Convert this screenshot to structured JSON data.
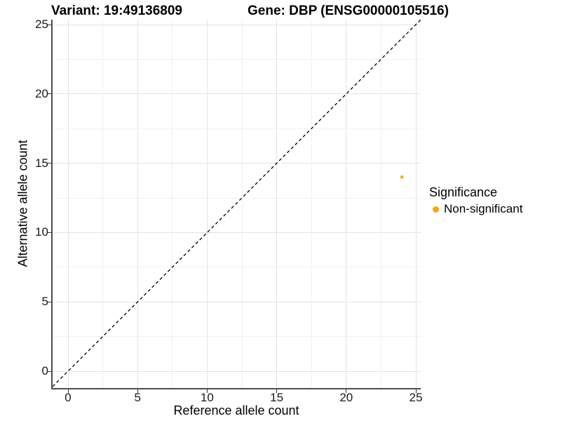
{
  "header": {
    "variant_title": "Variant: 19:49136809",
    "gene_title": "Gene: DBP (ENSG00000105516)"
  },
  "chart_data": {
    "type": "scatter",
    "title": "Variant: 19:49136809    Gene: DBP (ENSG00000105516)",
    "xlabel": "Reference allele count",
    "ylabel": "Alternative allele count",
    "xlim": [
      0,
      25
    ],
    "ylim": [
      0,
      25
    ],
    "x_ticks": [
      0,
      5,
      10,
      15,
      20,
      25
    ],
    "y_ticks": [
      0,
      5,
      10,
      15,
      20,
      25
    ],
    "grid": "major and minor, light gray on white",
    "series": [
      {
        "name": "Non-significant",
        "color": "#FFA500",
        "points": [
          {
            "x": 24,
            "y": 14
          }
        ]
      }
    ],
    "reference_line": {
      "type": "abline",
      "slope": 1,
      "intercept": 0,
      "style": "dashed",
      "color": "#000000"
    },
    "legend": {
      "title": "Significance",
      "position": "right",
      "entries": [
        {
          "label": "Non-significant",
          "color": "#FFA500"
        }
      ]
    }
  },
  "colors": {
    "background": "#FFFFFF",
    "point": "#FFA500",
    "grid_major": "#E3E3E3",
    "grid_minor": "#F1F1F1",
    "axis_line": "#4D4D4D",
    "tick": "#333333",
    "text": "#1A1A1A",
    "reference_line": "#000000"
  }
}
